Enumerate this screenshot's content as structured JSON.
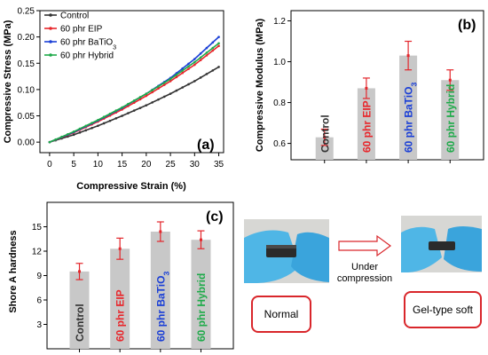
{
  "colors": {
    "control": "#333333",
    "eip": "#e8262b",
    "batio3": "#1a3fd6",
    "hybrid": "#1faa4a",
    "bar_fill": "#c8c8c8",
    "error": "#e3262b"
  },
  "chart_data": [
    {
      "id": "a",
      "type": "line",
      "panel_label": "(a)",
      "xlabel": "Compressive Strain (%)",
      "ylabel": "Compressive Stress (MPa)",
      "xlim": [
        -2,
        36
      ],
      "ylim": [
        -0.02,
        0.25
      ],
      "xticks": [
        0,
        5,
        10,
        15,
        20,
        25,
        30,
        35
      ],
      "yticks": [
        0.0,
        0.05,
        0.1,
        0.15,
        0.2,
        0.25
      ],
      "ytick_labels": [
        "0.00",
        "0.05",
        "0.10",
        "0.15",
        "0.20",
        "0.25"
      ],
      "legend_position": "top-left",
      "x": [
        0,
        5,
        10,
        15,
        20,
        25,
        30,
        35
      ],
      "series": [
        {
          "name": "Control",
          "key": "control",
          "values": [
            0,
            0.014,
            0.031,
            0.05,
            0.07,
            0.092,
            0.116,
            0.143
          ]
        },
        {
          "name": "60 phr EIP",
          "key": "eip",
          "values": [
            0,
            0.018,
            0.039,
            0.062,
            0.088,
            0.116,
            0.147,
            0.183
          ]
        },
        {
          "name": "60 phr BaTiO3",
          "key": "batio3",
          "values": [
            0,
            0.019,
            0.041,
            0.065,
            0.092,
            0.122,
            0.158,
            0.2
          ]
        },
        {
          "name": "60 phr Hybrid",
          "key": "hybrid",
          "values": [
            0,
            0.02,
            0.042,
            0.066,
            0.092,
            0.12,
            0.152,
            0.188
          ]
        }
      ]
    },
    {
      "id": "b",
      "type": "bar",
      "panel_label": "(b)",
      "xlabel": "",
      "ylabel": "Compressive Modulus (MPa)",
      "ylim": [
        0.52,
        1.25
      ],
      "yticks": [
        0.6,
        0.8,
        1.0,
        1.2
      ],
      "ytick_labels": [
        "0.6",
        "0.8",
        "1.0",
        "1.2"
      ],
      "categories": [
        "Control",
        "60 phr EIP",
        "60 phr BaTiO3",
        "60 phr Hybrid"
      ],
      "category_keys": [
        "control",
        "eip",
        "batio3",
        "hybrid"
      ],
      "values": [
        0.63,
        0.87,
        1.03,
        0.91
      ],
      "errors": [
        0.04,
        0.05,
        0.07,
        0.05
      ]
    },
    {
      "id": "c",
      "type": "bar",
      "panel_label": "(c)",
      "xlabel": "",
      "ylabel": "Shore A hardness",
      "ylim": [
        0,
        18
      ],
      "yticks": [
        3,
        6,
        9,
        12,
        15
      ],
      "ytick_labels": [
        "3",
        "6",
        "9",
        "12",
        "15"
      ],
      "categories": [
        "Control",
        "60 phr EIP",
        "60 phr BaTiO3",
        "60 phr Hybrid"
      ],
      "category_keys": [
        "control",
        "eip",
        "batio3",
        "hybrid"
      ],
      "values": [
        9.5,
        12.3,
        14.4,
        13.4
      ],
      "errors": [
        1.0,
        1.3,
        1.2,
        1.1
      ]
    }
  ],
  "photos": {
    "normal_caption": "Normal",
    "compressed_caption": "Gel-type soft",
    "arrow_label_line1": "Under",
    "arrow_label_line2": "compression"
  }
}
